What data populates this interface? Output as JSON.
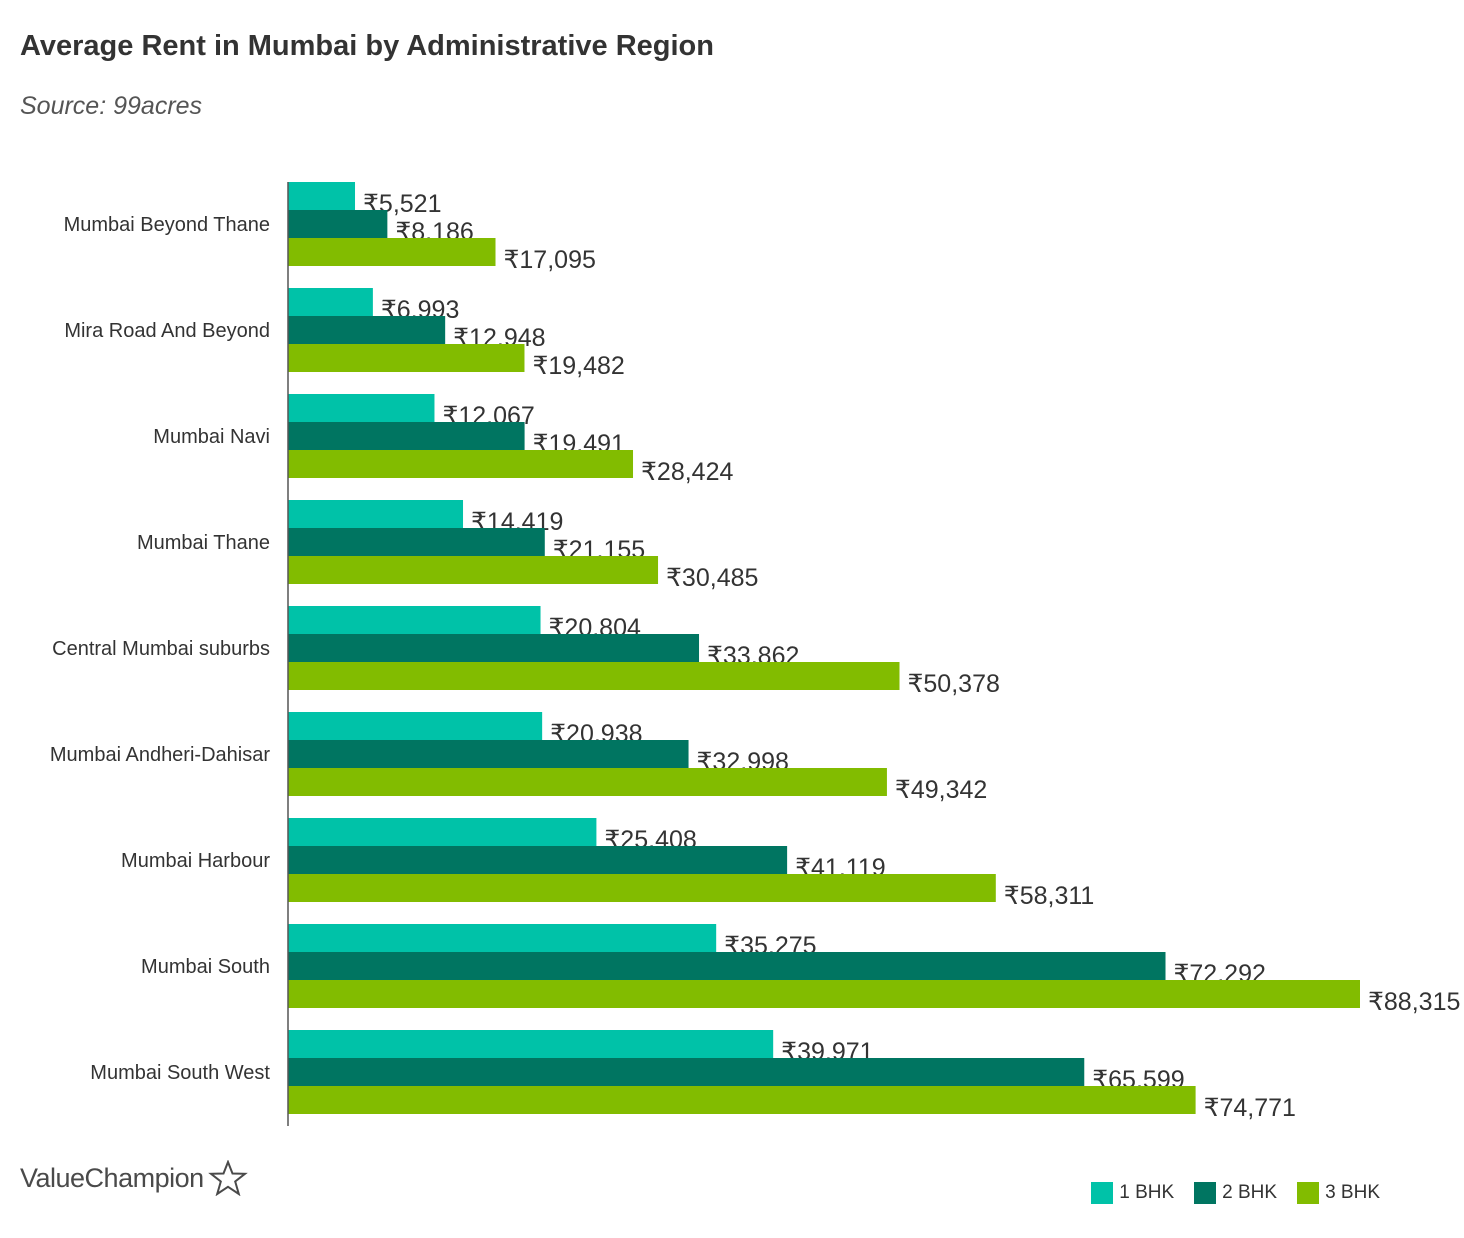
{
  "title": "Average Rent in Mumbai by Administrative Region",
  "subtitle": "Source: 99acres",
  "logo": {
    "text": "ValueChampion",
    "icon": "star-outline-icon"
  },
  "colors": {
    "one_bhk": "#00c2a8",
    "two_bhk": "#007561",
    "three_bhk": "#82bc00",
    "text": "#333333",
    "axis": "#555555"
  },
  "chart_data": {
    "type": "bar",
    "orientation": "horizontal",
    "title": "Average Rent in Mumbai by Administrative Region",
    "subtitle": "Source: 99acres",
    "value_prefix": "₹",
    "categories": [
      "Mumbai Beyond Thane",
      "Mira Road And Beyond",
      "Mumbai Navi",
      "Mumbai Thane",
      "Central Mumbai suburbs",
      "Mumbai Andheri-Dahisar",
      "Mumbai Harbour",
      "Mumbai South",
      "Mumbai South West"
    ],
    "series": [
      {
        "name": "1 BHK",
        "color": "#00c2a8",
        "values": [
          5521,
          6993,
          12067,
          14419,
          20804,
          20938,
          25408,
          35275,
          39971
        ]
      },
      {
        "name": "2 BHK",
        "color": "#007561",
        "values": [
          8186,
          12948,
          19491,
          21155,
          33862,
          32998,
          41119,
          72292,
          65599
        ]
      },
      {
        "name": "3 BHK",
        "color": "#82bc00",
        "values": [
          17095,
          19482,
          28424,
          30485,
          50378,
          49342,
          58311,
          88315,
          74771
        ]
      }
    ],
    "data_labels": true,
    "xlim": [
      0,
      88315
    ],
    "grid": false,
    "legend_position": "bottom-right"
  }
}
